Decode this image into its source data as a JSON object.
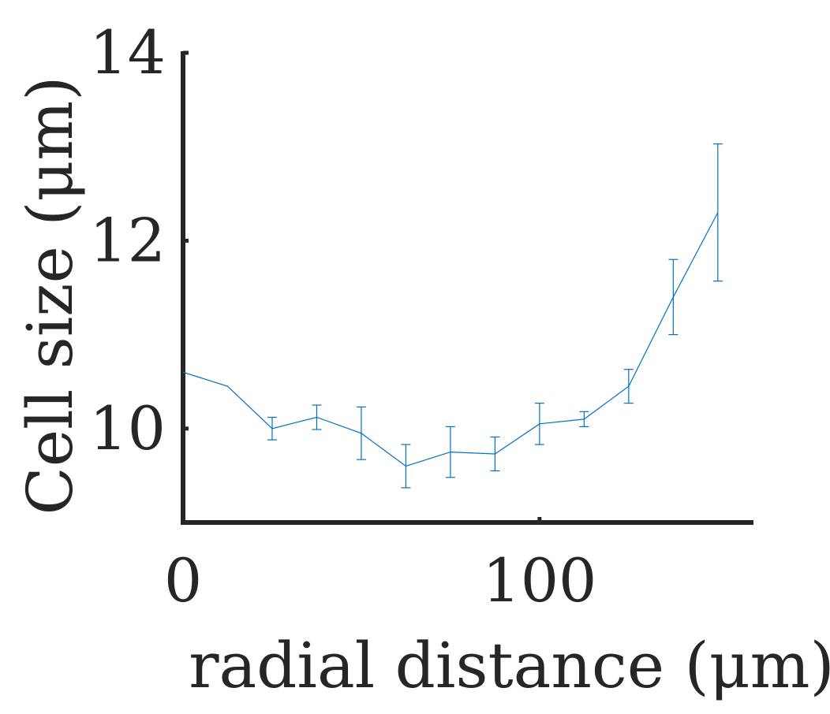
{
  "chart_data": {
    "type": "line",
    "title": "",
    "xlabel": "radial distance (μm)",
    "ylabel": "Cell size (μm)",
    "xlim": [
      0,
      160
    ],
    "ylim": [
      9,
      14
    ],
    "xticks": [
      0,
      100
    ],
    "xtick_labels": [
      "0",
      "100"
    ],
    "yticks": [
      10,
      12,
      14
    ],
    "ytick_labels": [
      "10",
      "12",
      "14"
    ],
    "grid": false,
    "legend": "none",
    "series": [
      {
        "color": "#0072BD",
        "x": [
          0,
          12.5,
          25,
          37.5,
          50,
          62.5,
          75,
          87.5,
          100,
          112.5,
          125,
          137.5,
          150
        ],
        "y": [
          10.6,
          10.45,
          10.0,
          10.12,
          9.95,
          9.6,
          9.75,
          9.73,
          10.05,
          10.1,
          10.45,
          11.4,
          12.3
        ],
        "err": [
          0.0,
          0.0,
          0.12,
          0.13,
          0.28,
          0.23,
          0.27,
          0.18,
          0.22,
          0.08,
          0.18,
          0.4,
          0.73
        ]
      }
    ]
  }
}
